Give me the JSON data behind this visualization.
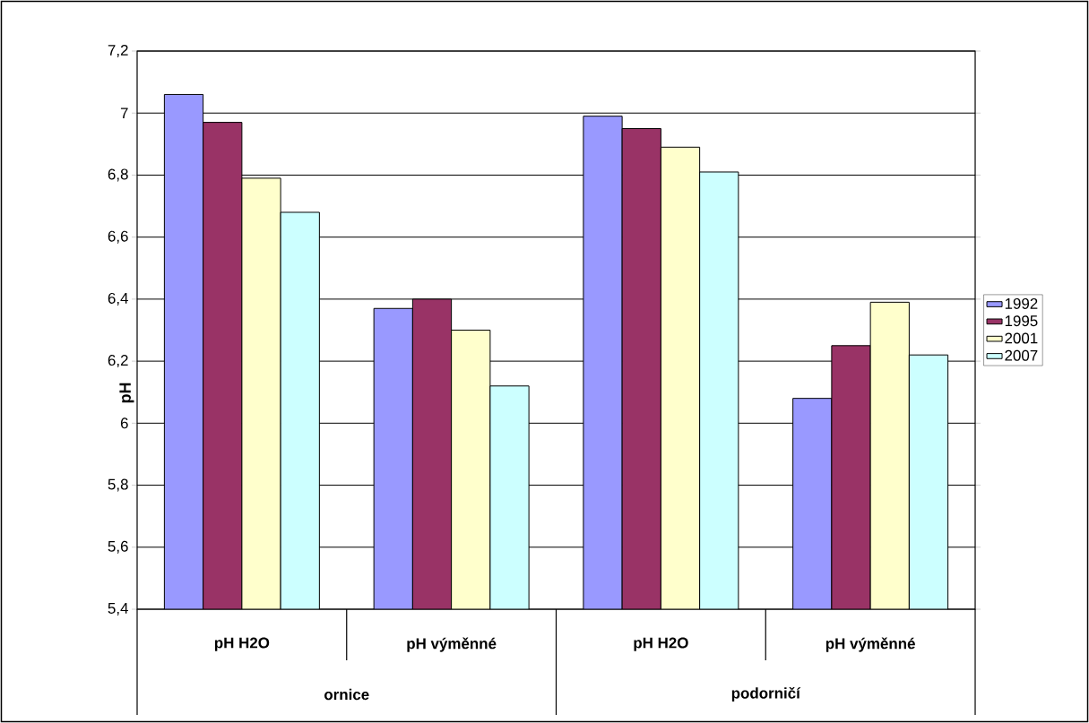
{
  "chart_data": {
    "type": "bar",
    "ylabel": "pH",
    "categories": [
      "pH H2O",
      "pH výměnné",
      "pH H2O",
      "pH výměnné"
    ],
    "annotations": [
      "ornice",
      "podorničí"
    ],
    "series": [
      {
        "name": "1992",
        "color": "#9999ff",
        "values": [
          7.06,
          6.37,
          6.99,
          6.08
        ]
      },
      {
        "name": "1995",
        "color": "#993366",
        "values": [
          6.97,
          6.4,
          6.95,
          6.25
        ]
      },
      {
        "name": "2001",
        "color": "#ffffcc",
        "values": [
          6.79,
          6.3,
          6.89,
          6.39
        ]
      },
      {
        "name": "2007",
        "color": "#ccffff",
        "values": [
          6.68,
          6.12,
          6.81,
          6.22
        ]
      }
    ],
    "ylim": [
      5.4,
      7.2
    ],
    "yticks": [
      {
        "value": 5.4,
        "label": "5,4"
      },
      {
        "value": 5.6,
        "label": "5,6"
      },
      {
        "value": 5.8,
        "label": "5,8"
      },
      6,
      {
        "value": 6.2,
        "label": "6,2"
      },
      {
        "value": 6.4,
        "label": "6,4"
      },
      {
        "value": 6.6,
        "label": "6,6"
      },
      {
        "value": 6.8,
        "label": "6,8"
      },
      7,
      {
        "value": 7.2,
        "label": "7,2"
      }
    ],
    "grid": "y",
    "legend": "right"
  }
}
